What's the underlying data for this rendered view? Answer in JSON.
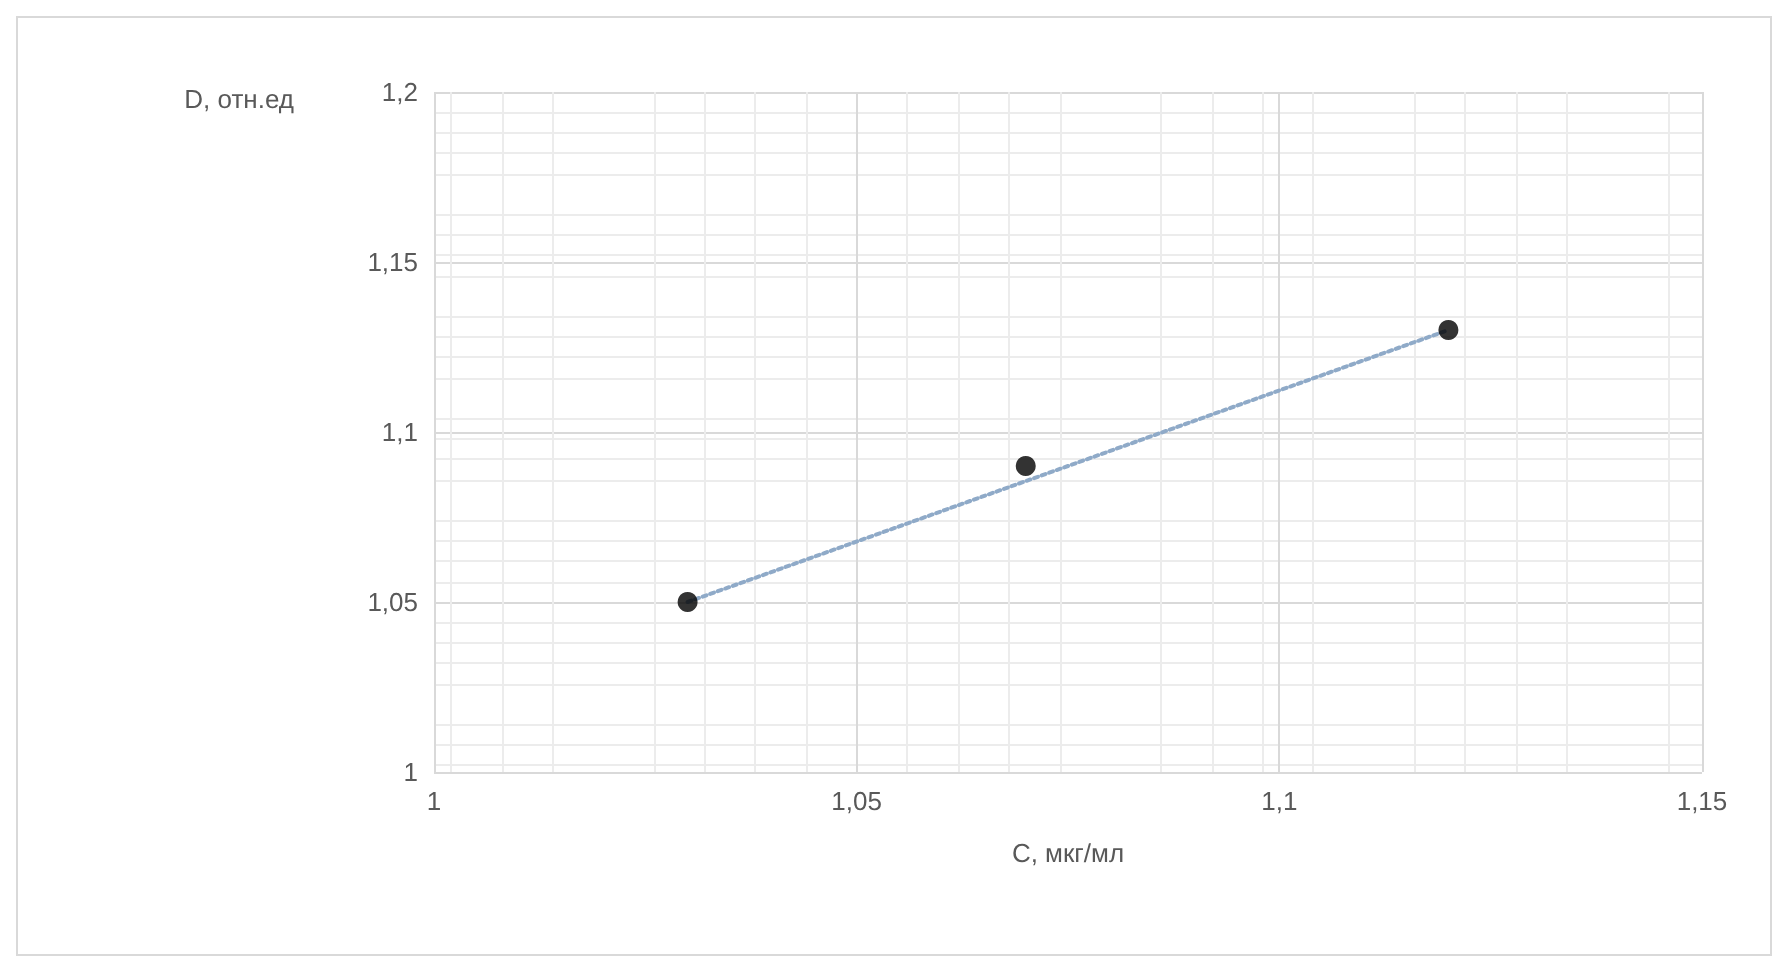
{
  "chart_data": {
    "type": "scatter",
    "xlabel": "C, мкг/мл",
    "ylabel": "D, отн.ед",
    "x": [
      1.03,
      1.07,
      1.12
    ],
    "series": [
      {
        "color": "#000000",
        "marker": "circle",
        "values": [
          1.05,
          1.09,
          1.13
        ]
      },
      {
        "type": "line",
        "color": "#8faac8",
        "marker": "none",
        "line_style": "dotted",
        "x": [
          1.03,
          1.12
        ],
        "values": [
          1.05,
          1.13
        ]
      }
    ],
    "xlim": [
      1,
      1.15
    ],
    "xticks": [
      1,
      {
        "value": 1.05,
        "label": "1,05"
      },
      {
        "value": 1.1,
        "label": "1,1"
      },
      {
        "value": 1.15,
        "label": "1,15"
      }
    ],
    "ylim": [
      1,
      1.2
    ],
    "yticks": [
      1,
      {
        "value": 1.05,
        "label": "1,05"
      },
      {
        "value": 1.1,
        "label": "1,1"
      },
      {
        "value": 1.15,
        "label": "1,15"
      },
      {
        "value": 1.2,
        "label": "1,2"
      }
    ],
    "grid": true
  }
}
